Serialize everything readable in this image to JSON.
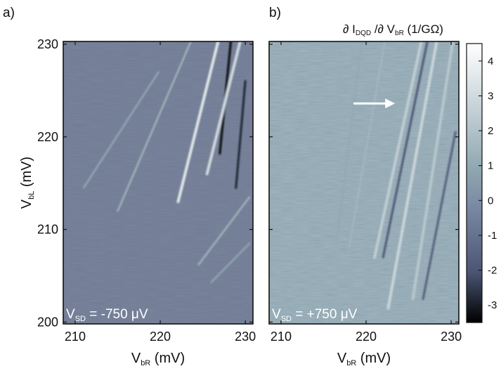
{
  "figure": {
    "panel_labels": [
      "a)",
      "b)"
    ],
    "colorbar": {
      "title_parts": [
        "∂ I",
        "DQD",
        " /∂ V",
        "bR",
        " (1/GΩ)"
      ],
      "ticks": [
        4,
        3,
        2,
        1,
        0,
        -1,
        -2,
        -3
      ],
      "range": [
        -3.5,
        4.5
      ],
      "colormap": [
        "#000000",
        "#4a5573",
        "#7b8aa4",
        "#8fa7b0",
        "#ffffff"
      ]
    }
  },
  "chart_data": [
    {
      "type": "heatmap",
      "panel": "a)",
      "xlabel_parts": [
        "V",
        "bR",
        " (mV)"
      ],
      "ylabel_parts": [
        "V",
        "bL",
        " (mV)"
      ],
      "xticks": [
        210,
        220,
        230
      ],
      "yticks": [
        200,
        210,
        220,
        230
      ],
      "xlim": [
        208.6,
        230.9
      ],
      "ylim": [
        199.8,
        230.3
      ],
      "annotation_parts": [
        "V",
        "SD",
        " = -750 μV"
      ],
      "background_color": "#6f7a93",
      "features": [
        {
          "kind": "bright-ridge",
          "from": [
            226.8,
            230.3
          ],
          "to": [
            222.1,
            213.0
          ],
          "value": 3.5
        },
        {
          "kind": "dark-ridge",
          "from": [
            228.3,
            230.3
          ],
          "to": [
            227.0,
            218.2
          ],
          "value": -3.3
        },
        {
          "kind": "bright-ridge",
          "from": [
            229.4,
            230.3
          ],
          "to": [
            225.5,
            216.0
          ],
          "value": 3.0
        },
        {
          "kind": "dark-ridge",
          "from": [
            230.0,
            226.0
          ],
          "to": [
            228.9,
            214.5
          ],
          "value": -2.8
        },
        {
          "kind": "bright-ridge",
          "from": [
            223.6,
            230.3
          ],
          "to": [
            215.0,
            212.0
          ],
          "value": 1.5
        },
        {
          "kind": "bright-ridge",
          "from": [
            219.8,
            227.0
          ],
          "to": [
            211.0,
            214.5
          ],
          "value": 1.0
        },
        {
          "kind": "bright-ridge",
          "from": [
            230.5,
            213.5
          ],
          "to": [
            224.5,
            206.2
          ],
          "value": 1.5
        },
        {
          "kind": "bright-ridge",
          "from": [
            230.5,
            208.5
          ],
          "to": [
            226.0,
            204.3
          ],
          "value": 1.0
        }
      ]
    },
    {
      "type": "heatmap",
      "panel": "b)",
      "xlabel_parts": [
        "V",
        "bR",
        " (mV)"
      ],
      "ylabel_parts": [],
      "xticks": [
        210,
        220,
        230
      ],
      "yticks": [
        200,
        210,
        220,
        230
      ],
      "xlim": [
        208.6,
        230.9
      ],
      "ylim": [
        199.8,
        230.3
      ],
      "annotation_parts": [
        "V",
        "SD",
        " = +750 μV"
      ],
      "background_color": "#8ca3ae",
      "arrow": {
        "from": [
          218.5,
          223.6
        ],
        "to": [
          223.4,
          223.6
        ],
        "color": "#ffffff"
      },
      "features": [
        {
          "kind": "bright-ridge",
          "from": [
            226.5,
            230.3
          ],
          "to": [
            221.0,
            207.0
          ],
          "value": 2.5
        },
        {
          "kind": "dark-ridge",
          "from": [
            227.2,
            230.3
          ],
          "to": [
            222.0,
            207.0
          ],
          "value": -1.8
        },
        {
          "kind": "bright-ridge",
          "from": [
            228.3,
            230.3
          ],
          "to": [
            222.6,
            201.5
          ],
          "value": 2.8
        },
        {
          "kind": "bright-ridge",
          "from": [
            230.2,
            230.3
          ],
          "to": [
            225.5,
            202.5
          ],
          "value": 2.2
        },
        {
          "kind": "dark-ridge",
          "from": [
            230.5,
            220.5
          ],
          "to": [
            226.7,
            202.5
          ],
          "value": -1.5
        },
        {
          "kind": "bright-ridge",
          "from": [
            222.2,
            230.3
          ],
          "to": [
            218.0,
            208.0
          ],
          "value": 1.5
        },
        {
          "kind": "bright-ridge",
          "from": [
            219.5,
            230.3
          ],
          "to": [
            216.5,
            208.5
          ],
          "value": 1.0
        }
      ]
    }
  ]
}
